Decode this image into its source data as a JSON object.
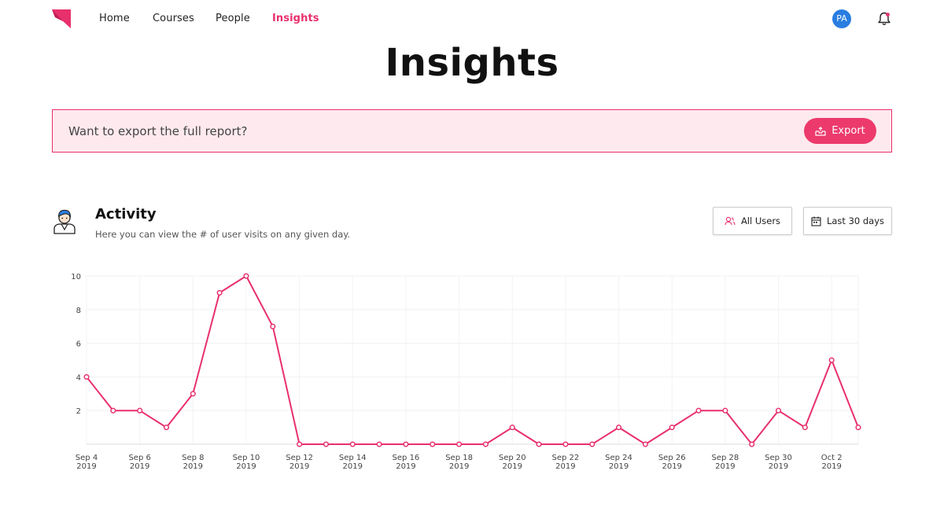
{
  "nav": {
    "links": [
      {
        "label": "Home"
      },
      {
        "label": "Courses"
      },
      {
        "label": "People"
      },
      {
        "label": "Insights",
        "active": true
      }
    ],
    "avatar_initials": "PA",
    "accent_color": "#e8306c"
  },
  "page_title": "Insights",
  "banner": {
    "text": "Want to export the full report?",
    "export_label": "Export",
    "export_icon": "export-tray-icon"
  },
  "activity": {
    "title": "Activity",
    "subtitle": "Here you can view the # of user visits on any given day.",
    "icon": "user-avatar-icon",
    "filters": {
      "users_label": "All Users",
      "users_icon": "users-icon",
      "range_label": "Last 30 days",
      "range_icon": "calendar-icon"
    }
  },
  "chart_data": {
    "type": "line",
    "x": [
      "Sep 4 2019",
      "Sep 5 2019",
      "Sep 6 2019",
      "Sep 7 2019",
      "Sep 8 2019",
      "Sep 9 2019",
      "Sep 10 2019",
      "Sep 11 2019",
      "Sep 12 2019",
      "Sep 13 2019",
      "Sep 14 2019",
      "Sep 15 2019",
      "Sep 16 2019",
      "Sep 17 2019",
      "Sep 18 2019",
      "Sep 19 2019",
      "Sep 20 2019",
      "Sep 21 2019",
      "Sep 22 2019",
      "Sep 23 2019",
      "Sep 24 2019",
      "Sep 25 2019",
      "Sep 26 2019",
      "Sep 27 2019",
      "Sep 28 2019",
      "Sep 29 2019",
      "Sep 30 2019",
      "Oct 1 2019",
      "Oct 2 2019",
      "Oct 3 2019"
    ],
    "values": [
      4,
      2,
      2,
      1,
      3,
      9,
      10,
      7,
      0,
      0,
      0,
      0,
      0,
      0,
      0,
      0,
      1,
      0,
      0,
      0,
      1,
      0,
      1,
      2,
      2,
      0,
      2,
      1,
      5,
      1
    ],
    "x_tick_labels": [
      {
        "index": 0,
        "line1": "Sep 4",
        "line2": "2019"
      },
      {
        "index": 2,
        "line1": "Sep 6",
        "line2": "2019"
      },
      {
        "index": 4,
        "line1": "Sep 8",
        "line2": "2019"
      },
      {
        "index": 6,
        "line1": "Sep 10",
        "line2": "2019"
      },
      {
        "index": 8,
        "line1": "Sep 12",
        "line2": "2019"
      },
      {
        "index": 10,
        "line1": "Sep 14",
        "line2": "2019"
      },
      {
        "index": 12,
        "line1": "Sep 16",
        "line2": "2019"
      },
      {
        "index": 14,
        "line1": "Sep 18",
        "line2": "2019"
      },
      {
        "index": 16,
        "line1": "Sep 20",
        "line2": "2019"
      },
      {
        "index": 18,
        "line1": "Sep 22",
        "line2": "2019"
      },
      {
        "index": 20,
        "line1": "Sep 24",
        "line2": "2019"
      },
      {
        "index": 22,
        "line1": "Sep 26",
        "line2": "2019"
      },
      {
        "index": 24,
        "line1": "Sep 28",
        "line2": "2019"
      },
      {
        "index": 26,
        "line1": "Sep 30",
        "line2": "2019"
      },
      {
        "index": 28,
        "line1": "Oct 2",
        "line2": "2019"
      }
    ],
    "y_ticks": [
      "2",
      "4",
      "6",
      "8",
      "10"
    ],
    "ylim": [
      0,
      10
    ],
    "grid": true,
    "line_color": "#e8306c"
  }
}
